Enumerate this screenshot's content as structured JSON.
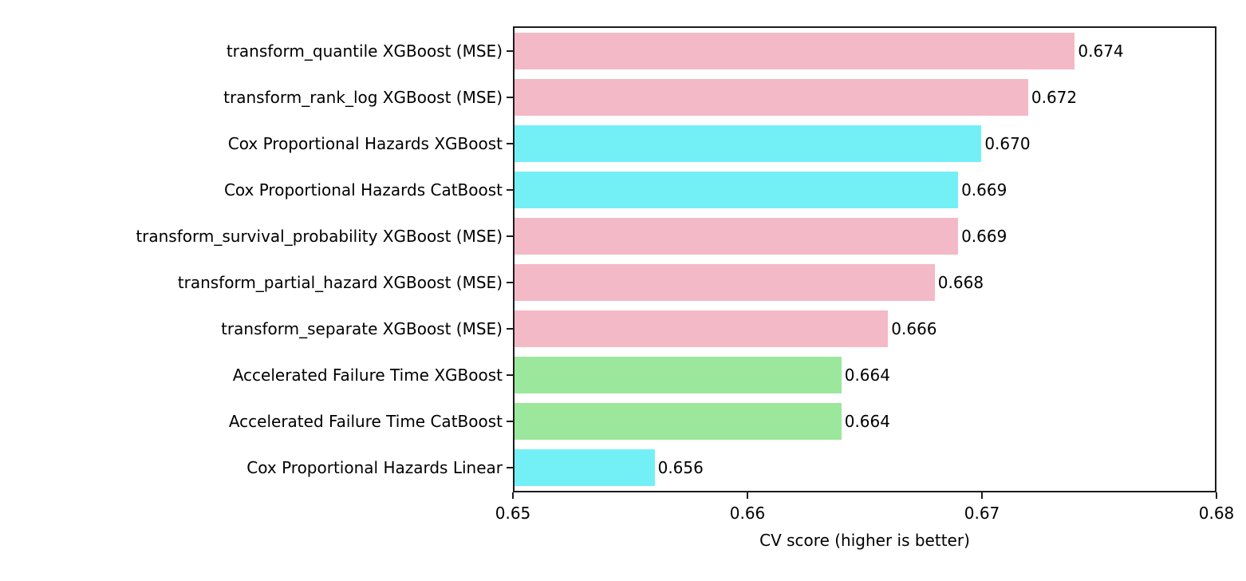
{
  "chart_data": {
    "type": "bar",
    "orientation": "horizontal",
    "title": "",
    "xlabel": "CV score (higher is better)",
    "ylabel": "",
    "xlim": [
      0.65,
      0.68
    ],
    "xticks": [
      0.65,
      0.66,
      0.67,
      0.68
    ],
    "xtick_labels": [
      "0.65",
      "0.66",
      "0.67",
      "0.68"
    ],
    "grid": false,
    "categories": [
      "transform_quantile XGBoost (MSE)",
      "transform_rank_log XGBoost (MSE)",
      "Cox Proportional Hazards XGBoost",
      "Cox Proportional Hazards CatBoost",
      "transform_survival_probability XGBoost (MSE)",
      "transform_partial_hazard XGBoost (MSE)",
      "transform_separate XGBoost (MSE)",
      "Accelerated Failure Time XGBoost",
      "Accelerated Failure Time CatBoost",
      "Cox Proportional Hazards Linear"
    ],
    "values": [
      0.674,
      0.672,
      0.67,
      0.669,
      0.669,
      0.668,
      0.666,
      0.664,
      0.664,
      0.656
    ],
    "value_labels": [
      "0.674",
      "0.672",
      "0.670",
      "0.669",
      "0.669",
      "0.668",
      "0.666",
      "0.664",
      "0.664",
      "0.656"
    ],
    "bar_colors": [
      "#f4b9c6",
      "#f4b9c6",
      "#73f0f6",
      "#73f0f6",
      "#f4b9c6",
      "#f4b9c6",
      "#f4b9c6",
      "#9be79b",
      "#9be79b",
      "#73f0f6"
    ],
    "palette": {
      "pink": "#f4b9c6",
      "cyan": "#73f0f6",
      "green": "#9be79b"
    }
  },
  "colors": {
    "axis": "#1c1c1c",
    "text": "#000000",
    "background": "#ffffff"
  }
}
